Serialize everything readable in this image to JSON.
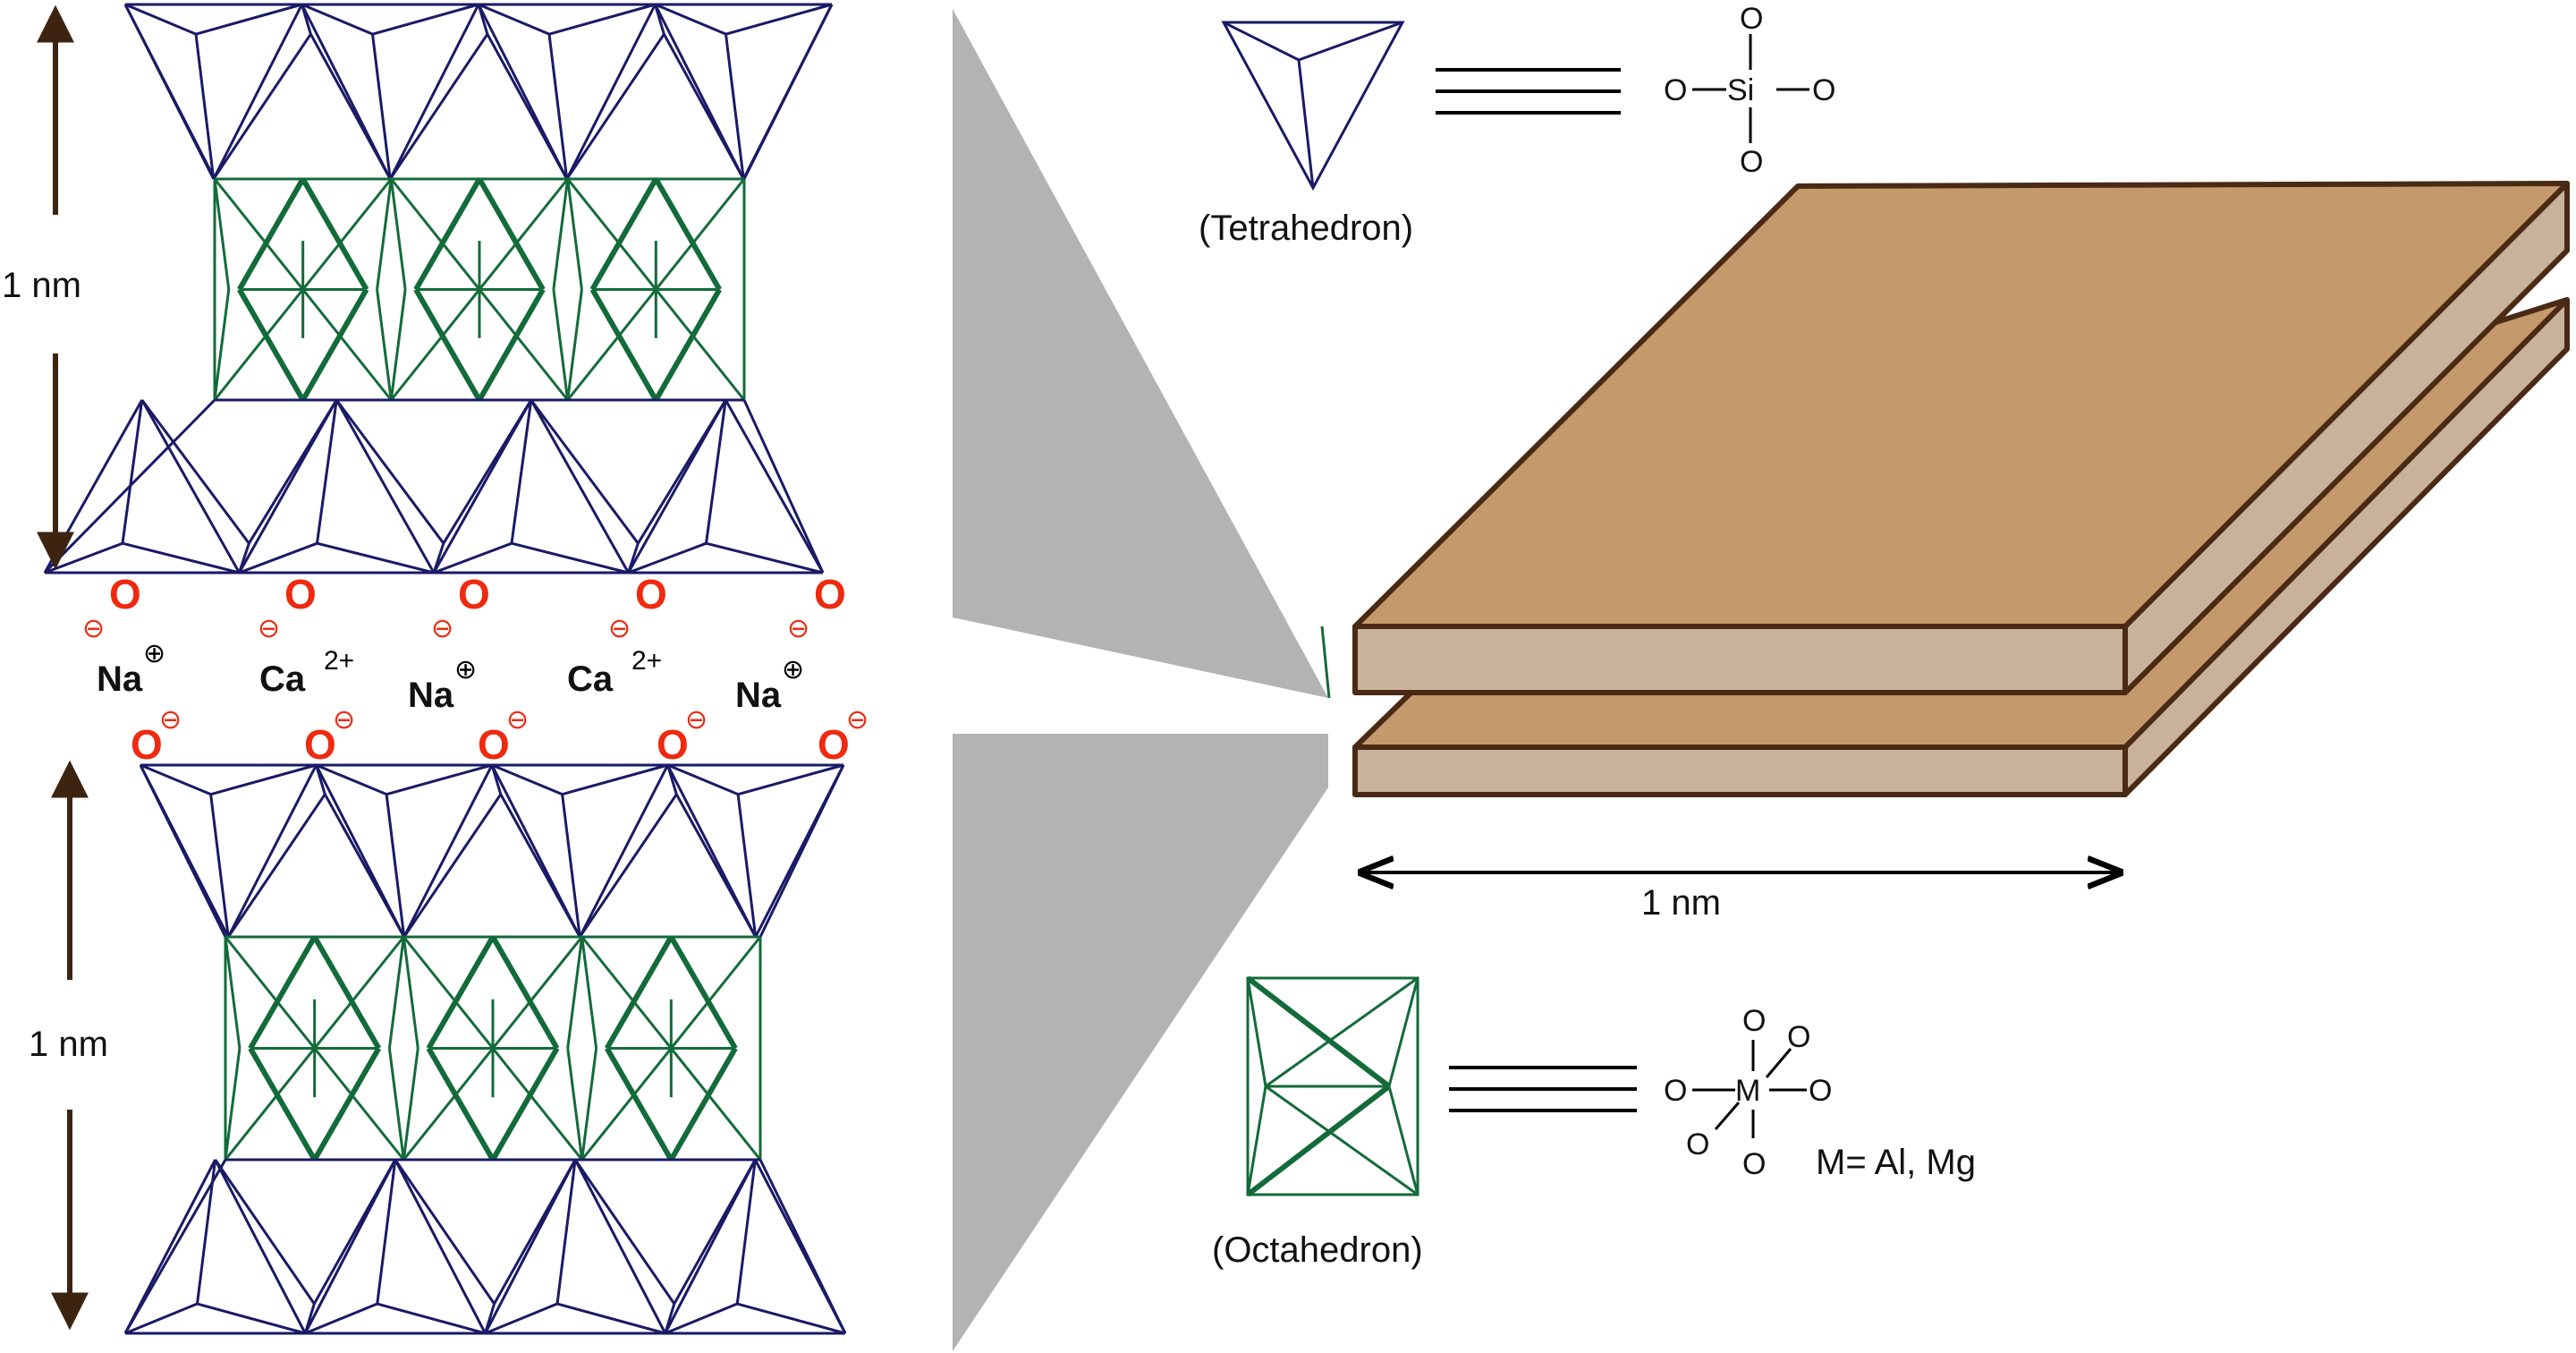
{
  "labels": {
    "scale_top": "1 nm",
    "scale_bottom": "1 nm",
    "scale_horizontal": "1 nm",
    "tetrahedron": "(Tetrahedron)",
    "octahedron": "(Octahedron)",
    "metal_note": "M= Al, Mg"
  },
  "atoms": {
    "oxygen": "O",
    "silicon": "Si",
    "metal": "M"
  },
  "cations": [
    {
      "symbol": "Na",
      "charge": "⊕"
    },
    {
      "symbol": "Ca",
      "charge": "2+"
    },
    {
      "symbol": "Na",
      "charge": "⊕"
    },
    {
      "symbol": "Ca",
      "charge": "2+"
    },
    {
      "symbol": "Na",
      "charge": "⊕"
    }
  ],
  "oxygen_anion": {
    "symbol": "O",
    "charge": "⊖"
  },
  "colors": {
    "tetrahedral": "#1a1a66",
    "octahedral": "#136b3a",
    "arrow": "#3d2410",
    "oxygen": "#ee2a10",
    "clay_top": "#c49a6c",
    "clay_side": "#c8b29c",
    "clay_edge": "#4a2a14",
    "callout": "#b3b3b3"
  }
}
